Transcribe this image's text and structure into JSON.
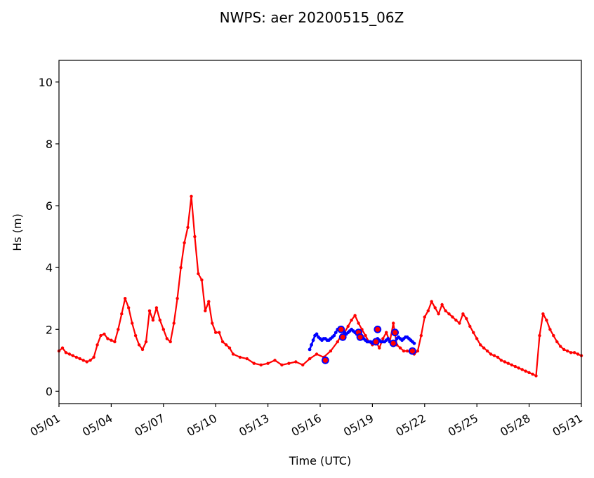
{
  "chart_data": {
    "type": "line",
    "title": "NWPS: aer 20200515_06Z",
    "xlabel": "Time (UTC)",
    "ylabel": "Hs (m)",
    "x_tick_labels": [
      "05/01",
      "05/04",
      "05/07",
      "05/10",
      "05/13",
      "05/16",
      "05/19",
      "05/22",
      "05/25",
      "05/28",
      "05/31"
    ],
    "x_ticks_day": [
      1,
      4,
      7,
      10,
      13,
      16,
      19,
      22,
      25,
      28,
      31
    ],
    "xlim": [
      1,
      31
    ],
    "ylim": [
      -0.4,
      10.7
    ],
    "y_ticks": [
      0,
      2,
      4,
      6,
      8,
      10
    ],
    "grid": false,
    "colors": {
      "red_series": "#ff0000",
      "blue_series": "#0000ff"
    },
    "series": [
      {
        "x": [
          1.0,
          1.2,
          1.4,
          1.6,
          1.8,
          2.0,
          2.2,
          2.4,
          2.6,
          2.8,
          3.0,
          3.2,
          3.4,
          3.6,
          3.8,
          4.0,
          4.2,
          4.4,
          4.6,
          4.8,
          5.0,
          5.2,
          5.4,
          5.6,
          5.8,
          6.0,
          6.2,
          6.4,
          6.6,
          6.8,
          7.0,
          7.2,
          7.4,
          7.6,
          7.8,
          8.0,
          8.2,
          8.4,
          8.6,
          8.8,
          9.0,
          9.2,
          9.4,
          9.6,
          9.8,
          10.0,
          10.2,
          10.4,
          10.6,
          10.8,
          11.0,
          11.4,
          11.8,
          12.2,
          12.6,
          13.0,
          13.4,
          13.8,
          14.2,
          14.6,
          15.0,
          15.4,
          15.8,
          16.2,
          16.6,
          17.0,
          17.2,
          17.4,
          17.6,
          17.8,
          18.0,
          18.2,
          18.4,
          18.6,
          18.8,
          19.0,
          19.2,
          19.4,
          19.6,
          19.8,
          20.0,
          20.2,
          20.4,
          20.6,
          20.8,
          21.0,
          21.2,
          21.4,
          21.6,
          21.8,
          22.0,
          22.2,
          22.4,
          22.6,
          22.8,
          23.0,
          23.2,
          23.4,
          23.6,
          23.8,
          24.0,
          24.2,
          24.4,
          24.6,
          24.8,
          25.0,
          25.2,
          25.4,
          25.6,
          25.8,
          26.0,
          26.2,
          26.4,
          26.6,
          26.8,
          27.0,
          27.2,
          27.4,
          27.6,
          27.8,
          28.0,
          28.2,
          28.4,
          28.6,
          28.8,
          29.0,
          29.2,
          29.4,
          29.6,
          29.8,
          30.0,
          30.2,
          30.4,
          30.6,
          30.8,
          31.0
        ],
        "y": [
          1.3,
          1.4,
          1.25,
          1.2,
          1.15,
          1.1,
          1.05,
          1.0,
          0.95,
          1.0,
          1.1,
          1.5,
          1.8,
          1.85,
          1.7,
          1.65,
          1.6,
          2.0,
          2.5,
          3.0,
          2.7,
          2.2,
          1.8,
          1.5,
          1.35,
          1.6,
          2.6,
          2.3,
          2.7,
          2.3,
          2.0,
          1.7,
          1.6,
          2.2,
          3.0,
          4.0,
          4.8,
          5.3,
          6.3,
          5.0,
          3.8,
          3.6,
          2.6,
          2.9,
          2.2,
          1.9,
          1.9,
          1.6,
          1.5,
          1.4,
          1.2,
          1.1,
          1.05,
          0.9,
          0.85,
          0.9,
          1.0,
          0.85,
          0.9,
          0.95,
          0.85,
          1.05,
          1.2,
          1.1,
          1.3,
          1.6,
          1.8,
          1.9,
          2.1,
          2.3,
          2.45,
          2.2,
          2.0,
          1.8,
          1.6,
          1.5,
          1.6,
          1.4,
          1.7,
          1.9,
          1.6,
          2.2,
          1.5,
          1.4,
          1.3,
          1.3,
          1.25,
          1.2,
          1.3,
          1.8,
          2.4,
          2.6,
          2.9,
          2.7,
          2.5,
          2.8,
          2.6,
          2.5,
          2.4,
          2.3,
          2.2,
          2.5,
          2.35,
          2.1,
          1.9,
          1.7,
          1.5,
          1.4,
          1.3,
          1.2,
          1.15,
          1.1,
          1.0,
          0.95,
          0.9,
          0.85,
          0.8,
          0.75,
          0.7,
          0.65,
          0.6,
          0.55,
          0.5,
          1.8,
          2.5,
          2.3,
          2.0,
          1.8,
          1.6,
          1.45,
          1.35,
          1.3,
          1.25,
          1.25,
          1.2,
          1.15
        ]
      },
      {
        "x": [
          15.4,
          15.5,
          15.6,
          15.7,
          15.8,
          15.9,
          16.0,
          16.1,
          16.2,
          16.3,
          16.4,
          16.5,
          16.6,
          16.7,
          16.8,
          16.9,
          17.0,
          17.1,
          17.2,
          17.3,
          17.4,
          17.5,
          17.6,
          17.7,
          17.8,
          17.9,
          18.0,
          18.1,
          18.2,
          18.3,
          18.4,
          18.5,
          18.6,
          18.7,
          18.8,
          18.9,
          19.0,
          19.1,
          19.2,
          19.3,
          19.4,
          19.5,
          19.6,
          19.7,
          19.8,
          19.9,
          20.0,
          20.1,
          20.2,
          20.3,
          20.4,
          20.5,
          20.6,
          20.7,
          20.8,
          20.9,
          21.0,
          21.1,
          21.2,
          21.3,
          21.4
        ],
        "y": [
          1.35,
          1.5,
          1.65,
          1.8,
          1.85,
          1.75,
          1.7,
          1.65,
          1.7,
          1.7,
          1.65,
          1.65,
          1.7,
          1.75,
          1.8,
          1.9,
          2.0,
          2.05,
          2.0,
          1.95,
          1.9,
          1.85,
          1.9,
          1.95,
          2.0,
          1.95,
          1.9,
          1.85,
          1.85,
          1.8,
          1.75,
          1.7,
          1.65,
          1.6,
          1.6,
          1.6,
          1.55,
          1.6,
          1.65,
          1.7,
          1.65,
          1.6,
          1.6,
          1.6,
          1.65,
          1.7,
          1.6,
          1.55,
          1.55,
          1.6,
          1.7,
          1.75,
          1.7,
          1.65,
          1.7,
          1.75,
          1.75,
          1.7,
          1.65,
          1.6,
          1.55
        ]
      },
      {
        "x": [
          16.3,
          17.2,
          17.3,
          18.2,
          18.3,
          19.2,
          19.3,
          20.2,
          20.3,
          21.3
        ],
        "y": [
          1.0,
          2.0,
          1.75,
          1.9,
          1.75,
          1.6,
          2.0,
          1.55,
          1.9,
          1.3
        ]
      }
    ]
  }
}
